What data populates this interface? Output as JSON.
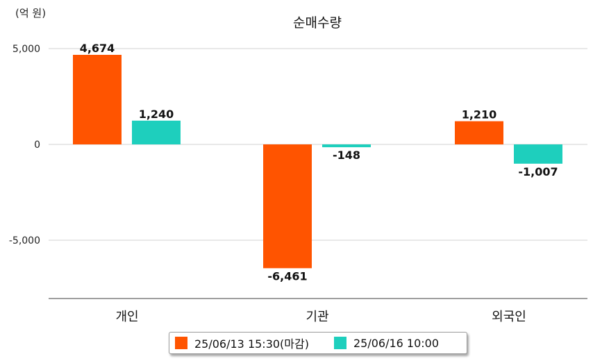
{
  "chart_data": {
    "type": "bar",
    "title": "순매수량",
    "unit": "(억 원)",
    "categories": [
      "개인",
      "기관",
      "외국인"
    ],
    "series": [
      {
        "name": "25/06/13 15:30(마감)",
        "values": [
          4674,
          -6461,
          1210
        ],
        "color": "#ff5400"
      },
      {
        "name": "25/06/16 10:00",
        "values": [
          1240,
          -148,
          -1007
        ],
        "color": "#1ecfbd"
      }
    ],
    "value_labels": [
      [
        "4,674",
        "-6,461",
        "1,210"
      ],
      [
        "1,240",
        "-148",
        "-1,007"
      ]
    ],
    "yticks": [
      5000,
      0,
      -5000
    ],
    "ytick_labels": [
      "5,000",
      "0",
      "-5,000"
    ],
    "ylim": [
      -8000,
      5000
    ],
    "grid": true,
    "legend_position": "bottom"
  }
}
